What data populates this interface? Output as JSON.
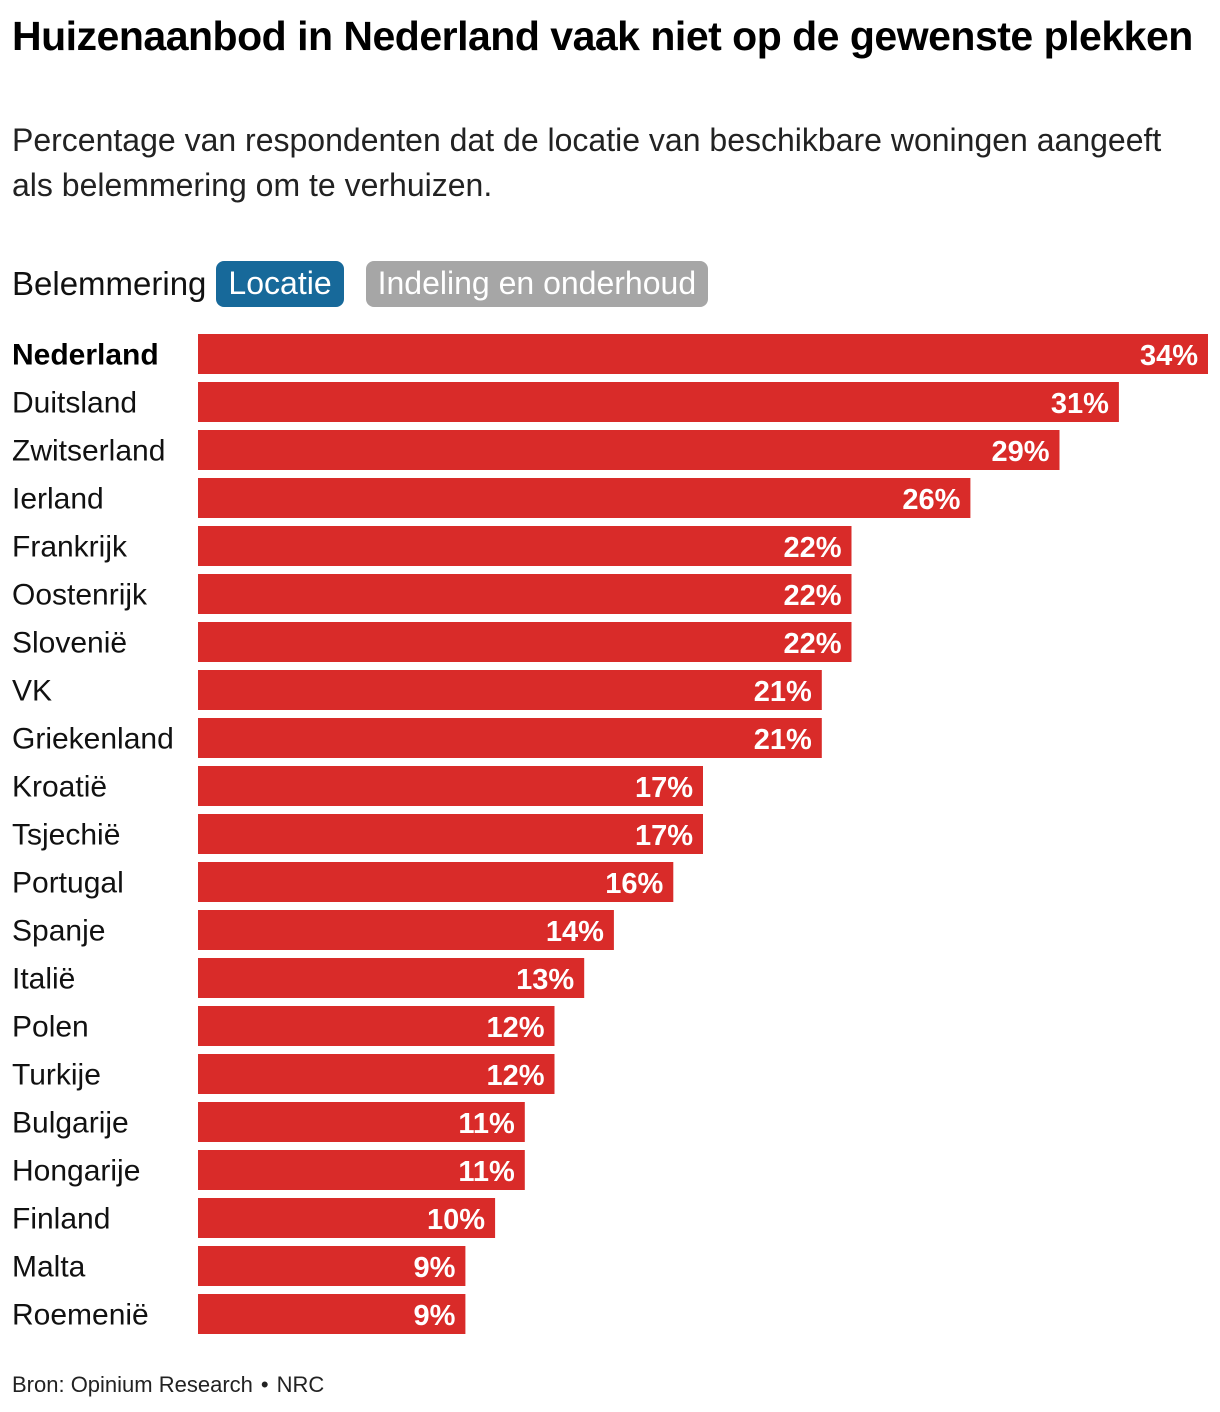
{
  "filter": {
    "label": "Belemmering",
    "options": [
      {
        "label": "Locatie",
        "active": true
      },
      {
        "label": "Indeling en onderhoud",
        "active": false
      }
    ]
  },
  "colors": {
    "bar": "#d92b29",
    "highlight_label": "#000000",
    "chip_active": "#17699a",
    "chip_inactive": "#a6a6a6"
  },
  "source": {
    "text": "Bron: Opinium Research",
    "separator": "•",
    "publisher": "NRC"
  },
  "chart_data": {
    "type": "bar",
    "orientation": "horizontal",
    "title": "Huizenaanbod in Nederland vaak niet op de gewenste plekken",
    "subtitle": "Percentage van respondenten dat de locatie van beschikbare woningen aangeeft als belemmering om te verhuizen.",
    "highlight": "Nederland",
    "unit": "%",
    "xlim": [
      0,
      34
    ],
    "categories": [
      "Nederland",
      "Duitsland",
      "Zwitserland",
      "Ierland",
      "Frankrijk",
      "Oostenrijk",
      "Slovenië",
      "VK",
      "Griekenland",
      "Kroatië",
      "Tsjechië",
      "Portugal",
      "Spanje",
      "Italië",
      "Polen",
      "Turkije",
      "Bulgarije",
      "Hongarije",
      "Finland",
      "Malta",
      "Roemenië"
    ],
    "values": [
      34,
      31,
      29,
      26,
      22,
      22,
      22,
      21,
      21,
      17,
      17,
      16,
      14,
      13,
      12,
      12,
      11,
      11,
      10,
      9,
      9
    ]
  }
}
